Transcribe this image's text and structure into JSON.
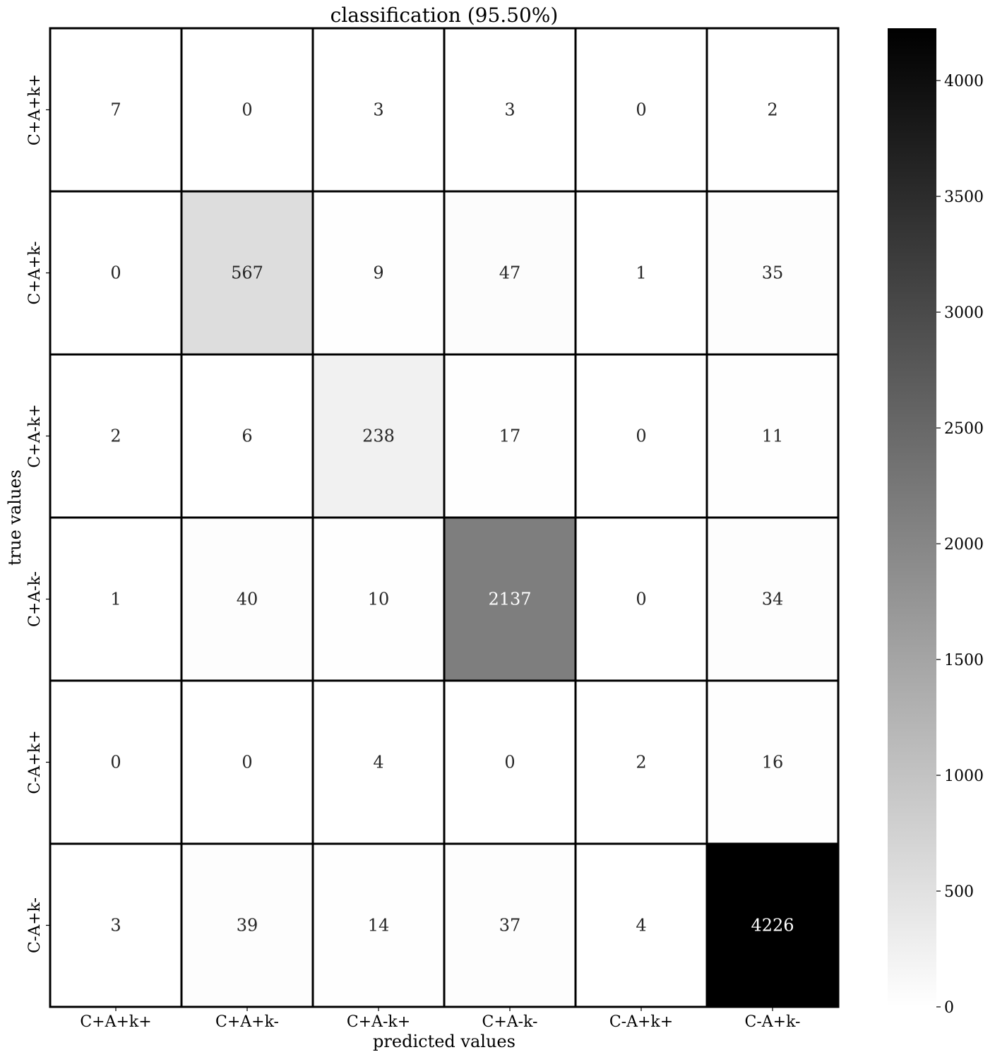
{
  "chart_data": {
    "type": "heatmap",
    "title": "classification (95.50%)",
    "xlabel": "predicted values",
    "ylabel": "true values",
    "x_categories": [
      "C+A+k+",
      "C+A+k-",
      "C+A-k+",
      "C+A-k-",
      "C-A+k+",
      "C-A+k-"
    ],
    "y_categories": [
      "C+A+k+",
      "C+A+k-",
      "C+A-k+",
      "C+A-k-",
      "C-A+k+",
      "C-A+k-"
    ],
    "values": [
      [
        7,
        0,
        3,
        3,
        0,
        2
      ],
      [
        0,
        567,
        9,
        47,
        1,
        35
      ],
      [
        2,
        6,
        238,
        17,
        0,
        11
      ],
      [
        1,
        40,
        10,
        2137,
        0,
        34
      ],
      [
        0,
        0,
        4,
        0,
        2,
        16
      ],
      [
        3,
        39,
        14,
        37,
        4,
        4226
      ]
    ],
    "colormap": "Greys",
    "color_min": 0,
    "color_max": 4226,
    "colorbar_ticks": [
      0,
      500,
      1000,
      1500,
      2000,
      2500,
      3000,
      3500,
      4000
    ],
    "colorbar_tick_labels": [
      "0",
      "500",
      "1000",
      "1500",
      "2000",
      "2500",
      "3000",
      "3500",
      "4000"
    ],
    "cell_border_color": "#000000",
    "annotation_dark_color": "#262626",
    "annotation_light_color": "#ffffff"
  }
}
